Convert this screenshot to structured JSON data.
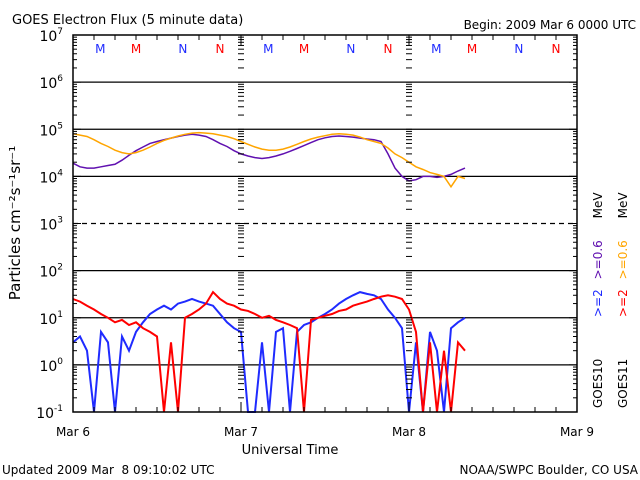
{
  "chart_data": {
    "type": "line",
    "title": "GOES Electron Flux (5 minute data)",
    "begin": "Begin: 2009 Mar 6 0000 UTC",
    "xlabel": "Universal Time",
    "ylabel": "Particles cm⁻²s⁻¹sr⁻¹",
    "x_unit": "hours since 2009 Mar 6 0000 UTC",
    "xlim": [
      0,
      72
    ],
    "ylim": [
      0.1,
      10000000
    ],
    "yscale": "log",
    "x_tick_labels": [
      "Mar 6",
      "Mar 7",
      "Mar 8",
      "Mar 9"
    ],
    "y_tick_labels": [
      {
        "base": "10",
        "exp": "7"
      },
      {
        "base": "10",
        "exp": "6"
      },
      {
        "base": "10",
        "exp": "5"
      },
      {
        "base": "10",
        "exp": "4"
      },
      {
        "base": "10",
        "exp": "3"
      },
      {
        "base": "10",
        "exp": "2"
      },
      {
        "base": "10",
        "exp": "1"
      },
      {
        "base": "10",
        "exp": "0"
      },
      {
        "base": "10",
        "exp": "-1"
      }
    ],
    "threshold_lines": {
      "solid": [
        1000000,
        100000,
        10000,
        100,
        10,
        1
      ],
      "dashed": [
        1000
      ]
    },
    "markers": [
      {
        "label": "M",
        "day": 0,
        "offset_h": 3.9,
        "color": "#1f2bff"
      },
      {
        "label": "M",
        "day": 0,
        "offset_h": 9.0,
        "color": "#ff0000"
      },
      {
        "label": "N",
        "day": 0,
        "offset_h": 15.7,
        "color": "#1f2bff"
      },
      {
        "label": "N",
        "day": 0,
        "offset_h": 21.0,
        "color": "#ff0000"
      },
      {
        "label": "M",
        "day": 1,
        "offset_h": 3.9,
        "color": "#1f2bff"
      },
      {
        "label": "M",
        "day": 1,
        "offset_h": 9.0,
        "color": "#ff0000"
      },
      {
        "label": "N",
        "day": 1,
        "offset_h": 15.7,
        "color": "#1f2bff"
      },
      {
        "label": "N",
        "day": 1,
        "offset_h": 21.0,
        "color": "#ff0000"
      },
      {
        "label": "M",
        "day": 2,
        "offset_h": 3.9,
        "color": "#1f2bff"
      },
      {
        "label": "M",
        "day": 2,
        "offset_h": 9.0,
        "color": "#ff0000"
      },
      {
        "label": "N",
        "day": 2,
        "offset_h": 15.7,
        "color": "#1f2bff"
      },
      {
        "label": "N",
        "day": 2,
        "offset_h": 21.0,
        "color": "#ff0000"
      }
    ],
    "series": [
      {
        "name": "GOES10 >=0.6 MeV",
        "color": "#6010b0",
        "scale": 10000,
        "values": [
          1.9,
          1.6,
          1.5,
          1.5,
          1.6,
          1.7,
          1.8,
          2.2,
          2.8,
          3.5,
          4.2,
          5,
          5.5,
          6,
          6.5,
          7,
          7.5,
          7.8,
          7.5,
          7,
          6,
          5,
          4.3,
          3.5,
          3,
          2.7,
          2.5,
          2.4,
          2.5,
          2.7,
          3,
          3.4,
          3.9,
          4.5,
          5.2,
          6,
          6.6,
          7,
          7.2,
          7,
          6.8,
          6.5,
          6.2,
          6,
          5.5,
          3,
          1.5,
          1,
          0.8,
          0.85,
          1,
          1,
          0.95,
          1,
          1.1,
          1.3,
          1.5
        ]
      },
      {
        "name": "GOES11 >=0.6 MeV",
        "color": "#ffa500",
        "scale": 10000,
        "values": [
          8,
          7.5,
          7,
          6,
          5,
          4.3,
          3.6,
          3.2,
          3,
          3.2,
          3.6,
          4.2,
          5,
          5.8,
          6.5,
          7.2,
          7.8,
          8.3,
          8.5,
          8.3,
          8,
          7.5,
          7,
          6.3,
          5.5,
          4.8,
          4.2,
          3.8,
          3.6,
          3.6,
          3.8,
          4.2,
          4.8,
          5.5,
          6.2,
          6.8,
          7.3,
          7.8,
          8,
          7.8,
          7.5,
          6.8,
          6,
          5.5,
          5,
          4,
          3,
          2.5,
          2,
          1.6,
          1.4,
          1.2,
          1.1,
          1,
          0.6,
          1,
          0.9
        ]
      },
      {
        "name": "GOES10 >=2 MeV",
        "color": "#1f2bff",
        "scale": 1,
        "values": [
          3,
          4,
          2,
          0.1,
          5,
          3,
          0.1,
          4,
          2,
          5,
          8,
          12,
          15,
          18,
          15,
          20,
          22,
          25,
          22,
          20,
          18,
          12,
          8,
          6,
          5,
          0.1,
          0.1,
          3,
          0.1,
          5,
          6,
          0.1,
          5,
          7,
          8,
          10,
          12,
          15,
          20,
          25,
          30,
          35,
          32,
          30,
          25,
          15,
          10,
          6,
          0.1,
          3,
          0.1,
          5,
          2,
          0.1,
          6,
          8,
          10
        ]
      },
      {
        "name": "GOES11 >=2 MeV",
        "color": "#ff0000",
        "scale": 1,
        "values": [
          25,
          22,
          18,
          15,
          12,
          10,
          8,
          9,
          7,
          8,
          6,
          5,
          4,
          0.1,
          3,
          0.1,
          10,
          12,
          15,
          20,
          35,
          25,
          20,
          18,
          15,
          14,
          12,
          10,
          11,
          9,
          8,
          7,
          6,
          0.1,
          9,
          10,
          11,
          12,
          14,
          15,
          18,
          20,
          22,
          25,
          28,
          30,
          28,
          25,
          15,
          5,
          0.1,
          3,
          0.1,
          2,
          0.1,
          3,
          2
        ]
      }
    ],
    "legend": {
      "placement": "right",
      "goes10": {
        "sat": "GOES10",
        "e2": ">=2",
        "e06": ">=0.6",
        "unit": "MeV"
      },
      "goes11": {
        "sat": "GOES11",
        "e2": ">=2",
        "e06": ">=0.6",
        "unit": "MeV"
      }
    }
  },
  "footer": {
    "updated": "Updated 2009 Mar  8 09:10:02 UTC",
    "source": "NOAA/SWPC Boulder, CO USA"
  }
}
